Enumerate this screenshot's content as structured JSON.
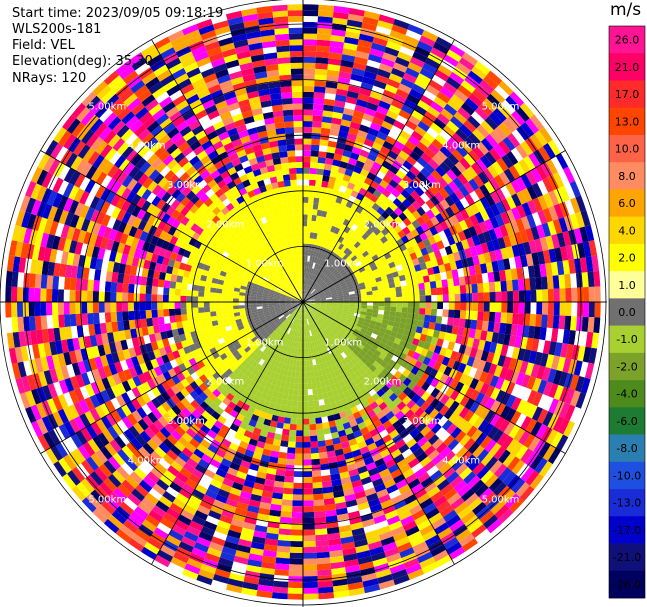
{
  "header": {
    "start_time": "Start time: 2023/09/05 09:18:19",
    "instrument": "WLS200s-181",
    "field": "Field: VEL",
    "elevation": "Elevation(deg): 35.30",
    "nrays": "NRays: 120"
  },
  "colorbar": {
    "unit": "m/s",
    "ticks": [
      "26.0",
      "21.0",
      "17.0",
      "13.0",
      "10.0",
      "8.0",
      "6.0",
      "4.0",
      "2.0",
      "1.0",
      "0.0",
      "-1.0",
      "-2.0",
      "-4.0",
      "-6.0",
      "-8.0",
      "-10.0",
      "-13.0",
      "-17.0",
      "-21.0",
      "-26.0",
      "-30.0"
    ],
    "colors": [
      "#ff1493",
      "#ff0066",
      "#ff2a2a",
      "#ff4500",
      "#ff6347",
      "#ff8c60",
      "#ffa500",
      "#ffd700",
      "#ffff00",
      "#ffff99",
      "#707070",
      "#a8d030",
      "#7da22a",
      "#4d8c1c",
      "#1e7c32",
      "#2a7fb0",
      "#1e4fe0",
      "#1a2bd8",
      "#0000cd",
      "#10107a",
      "#000060"
    ]
  },
  "chart_data": {
    "type": "ppi",
    "field": "VEL",
    "units": "m/s",
    "nrays": 120,
    "elevation_deg": 35.3,
    "range_rings_km": [
      1.0,
      2.0,
      3.0,
      4.0,
      5.0
    ],
    "ring_labels": [
      "1.00km",
      "2.00km",
      "3.00km",
      "4.00km",
      "5.00km"
    ],
    "spoke_angles_deg": [
      0,
      30,
      60,
      90,
      120,
      150,
      180,
      210,
      240,
      270,
      300,
      330
    ],
    "valid_data_range_km": 2.2,
    "max_range_km": 5.45,
    "noise_classes": [
      "#ff1493",
      "#ff0066",
      "#ff2a2a",
      "#ff4500",
      "#ffa500",
      "#ffff00",
      "#0000cd",
      "#1a2bd8",
      "#10107a",
      "#000060",
      "#ff00ff",
      "#ff8c60",
      "#ffd700"
    ],
    "inner_pattern": [
      {
        "from_deg": 0,
        "to_deg": 90,
        "near": "#707070",
        "far": "#ffff00"
      },
      {
        "from_deg": 90,
        "to_deg": 135,
        "near": "#a8d030",
        "far": "#7da22a"
      },
      {
        "from_deg": 135,
        "to_deg": 225,
        "near": "#a8d030",
        "far": "#a8d030"
      },
      {
        "from_deg": 225,
        "to_deg": 290,
        "near": "#707070",
        "far": "#ffff00"
      },
      {
        "from_deg": 290,
        "to_deg": 360,
        "near": "#ffff00",
        "far": "#ffff00"
      }
    ]
  }
}
